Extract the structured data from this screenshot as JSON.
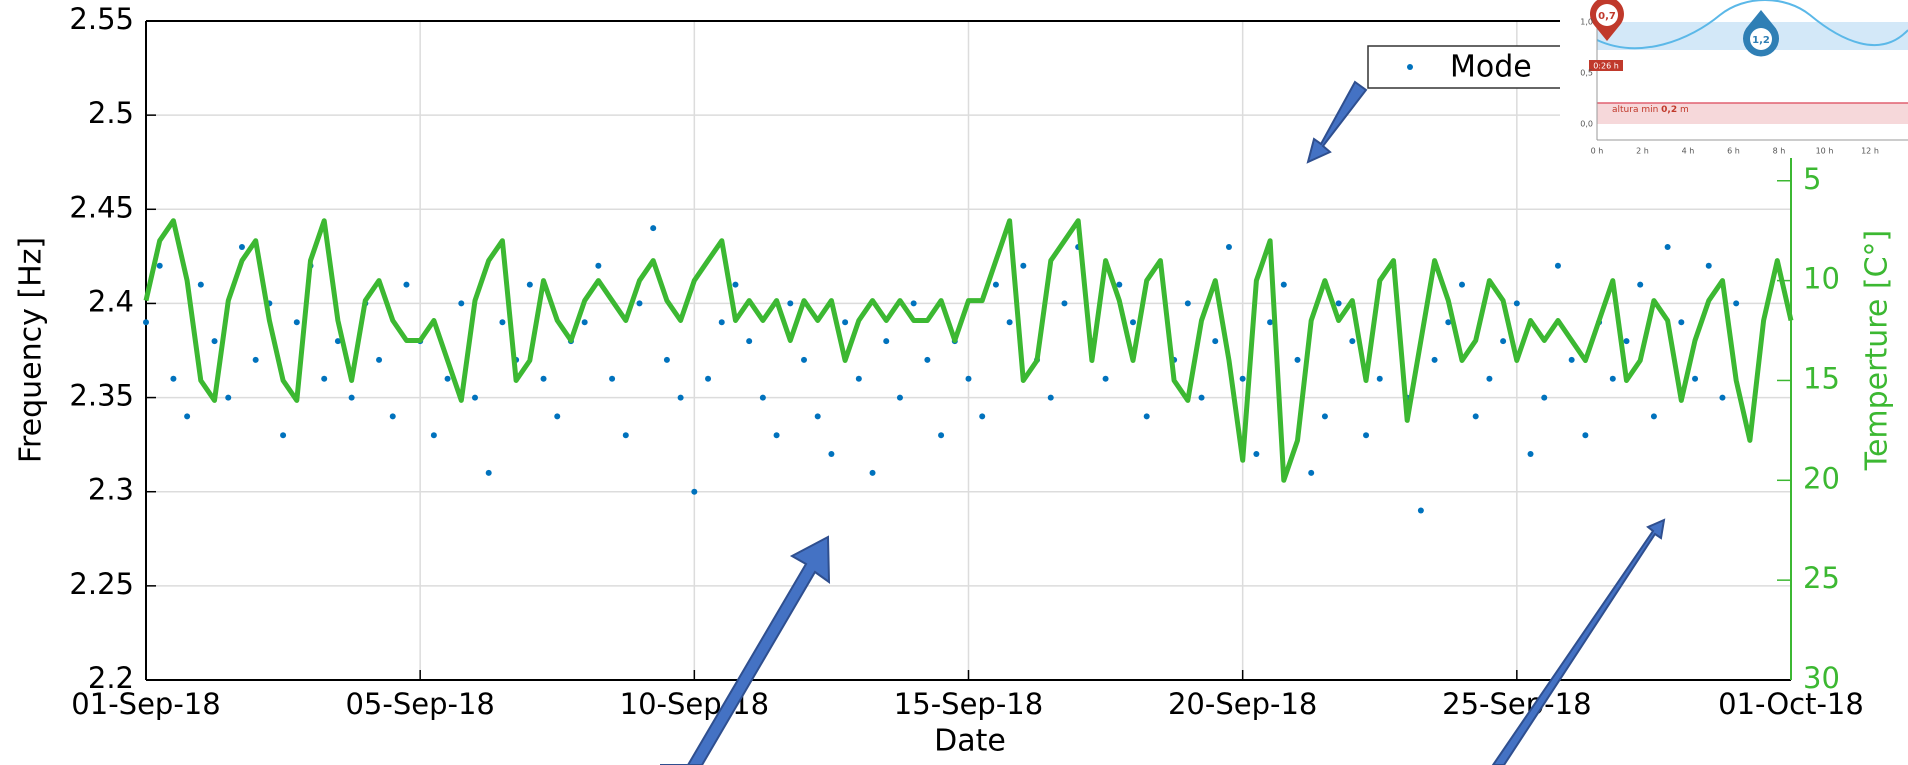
{
  "chart_data": {
    "type": "scatter-line",
    "xlabel": "Date",
    "ylabel": "Frequency [Hz]",
    "y2label": "Temperture [C°]",
    "xlim": [
      0,
      30
    ],
    "xticks": [
      {
        "value": 0,
        "label": "01-Sep-18"
      },
      {
        "value": 5,
        "label": "05-Sep-18"
      },
      {
        "value": 10,
        "label": "10-Sep-18"
      },
      {
        "value": 15,
        "label": "15-Sep-18"
      },
      {
        "value": 20,
        "label": "20-Sep-18"
      },
      {
        "value": 25,
        "label": "25-Sep-18"
      },
      {
        "value": 30,
        "label": "01-Oct-18"
      }
    ],
    "ylim": [
      2.2,
      2.55
    ],
    "yticks": [
      2.2,
      2.25,
      2.3,
      2.35,
      2.4,
      2.45,
      2.5,
      2.55
    ],
    "y2lim": [
      -3,
      30
    ],
    "y2ticks": [
      5,
      10,
      15,
      20,
      25,
      30
    ],
    "y2_reversed": true,
    "y2color": "#3cb832",
    "grid": true,
    "legend": "upper right",
    "x": [
      0,
      0.25,
      0.5,
      0.75,
      1,
      1.25,
      1.5,
      1.75,
      2,
      2.25,
      2.5,
      2.75,
      3,
      3.25,
      3.5,
      3.75,
      4,
      4.25,
      4.5,
      4.75,
      5,
      5.25,
      5.5,
      5.75,
      6,
      6.25,
      6.5,
      6.75,
      7,
      7.25,
      7.5,
      7.75,
      8,
      8.25,
      8.5,
      8.75,
      9,
      9.25,
      9.5,
      9.75,
      10,
      10.25,
      10.5,
      10.75,
      11,
      11.25,
      11.5,
      11.75,
      12,
      12.25,
      12.5,
      12.75,
      13,
      13.25,
      13.5,
      13.75,
      14,
      14.25,
      14.5,
      14.75,
      15,
      15.25,
      15.5,
      15.75,
      16,
      16.25,
      16.5,
      16.75,
      17,
      17.25,
      17.5,
      17.75,
      18,
      18.25,
      18.5,
      18.75,
      19,
      19.25,
      19.5,
      19.75,
      20,
      20.25,
      20.5,
      20.75,
      21,
      21.25,
      21.5,
      21.75,
      22,
      22.25,
      22.5,
      22.75,
      23,
      23.25,
      23.5,
      23.75,
      24,
      24.25,
      24.5,
      24.75,
      25,
      25.25,
      25.5,
      25.75,
      26,
      26.25,
      26.5,
      26.75,
      27,
      27.25,
      27.5,
      27.75,
      28,
      28.25,
      28.5,
      28.75,
      29,
      29.25,
      29.5,
      29.75,
      30
    ],
    "series": [
      {
        "name": "Mode",
        "color": "#0072bd",
        "kind": "scatter",
        "values": [
          2.39,
          2.42,
          2.36,
          2.34,
          2.41,
          2.38,
          2.35,
          2.43,
          2.37,
          2.4,
          2.33,
          2.39,
          2.42,
          2.36,
          2.38,
          2.35,
          2.4,
          2.37,
          2.34,
          2.41,
          2.38,
          2.33,
          2.36,
          2.4,
          2.35,
          2.31,
          2.39,
          2.37,
          2.41,
          2.36,
          2.34,
          2.38,
          2.39,
          2.42,
          2.36,
          2.33,
          2.4,
          2.44,
          2.37,
          2.35,
          2.3,
          2.36,
          2.39,
          2.41,
          2.38,
          2.35,
          2.33,
          2.4,
          2.37,
          2.34,
          2.32,
          2.39,
          2.36,
          2.31,
          2.38,
          2.35,
          2.4,
          2.37,
          2.33,
          2.38,
          2.36,
          2.34,
          2.41,
          2.39,
          2.42,
          2.37,
          2.35,
          2.4,
          2.43,
          2.38,
          2.36,
          2.41,
          2.39,
          2.34,
          2.42,
          2.37,
          2.4,
          2.35,
          2.38,
          2.43,
          2.36,
          2.32,
          2.39,
          2.41,
          2.37,
          2.31,
          2.34,
          2.4,
          2.38,
          2.33,
          2.36,
          2.42,
          2.35,
          2.29,
          2.37,
          2.39,
          2.41,
          2.34,
          2.36,
          2.38,
          2.4,
          2.32,
          2.35,
          2.42,
          2.37,
          2.33,
          2.39,
          2.36,
          2.38,
          2.41,
          2.34,
          2.43,
          2.39,
          2.36,
          2.42,
          2.35,
          2.4
        ]
      },
      {
        "color": "#3cb832",
        "kind": "line",
        "axis": "y2",
        "values": [
          11,
          8,
          7,
          10,
          15,
          16,
          11,
          9,
          8,
          12,
          15,
          16,
          9,
          7,
          12,
          15,
          11,
          10,
          12,
          13,
          13,
          12,
          14,
          16,
          11,
          9,
          8,
          15,
          14,
          10,
          12,
          13,
          11,
          10,
          11,
          12,
          10,
          9,
          11,
          12,
          10,
          9,
          8,
          12,
          11,
          12,
          11,
          13,
          11,
          12,
          11,
          14,
          12,
          11,
          12,
          11,
          12,
          12,
          11,
          13,
          11,
          11,
          9,
          7,
          15,
          14,
          9,
          8,
          7,
          14,
          9,
          11,
          14,
          10,
          9,
          15,
          16,
          12,
          10,
          14,
          19,
          10,
          8,
          20,
          18,
          12,
          10,
          12,
          11,
          15,
          10,
          9,
          17,
          13,
          9,
          11,
          14,
          13,
          10,
          11,
          14,
          12,
          13,
          12,
          13,
          14,
          12,
          10,
          15,
          14,
          11,
          12,
          16,
          13,
          11,
          10,
          15,
          18,
          12,
          9,
          12
        ]
      }
    ]
  },
  "inset": {
    "ylabels": [
      "1,0",
      "0,5",
      "0,0"
    ],
    "xlabels": [
      "0 h",
      "2 h",
      "4 h",
      "6 h",
      "8 h",
      "10 h",
      "12 h"
    ],
    "markers": [
      "0,7",
      "1,2"
    ],
    "time_label": "0:26 h",
    "min_label": "altura min",
    "min_value": "0,2",
    "min_unit": "m"
  }
}
